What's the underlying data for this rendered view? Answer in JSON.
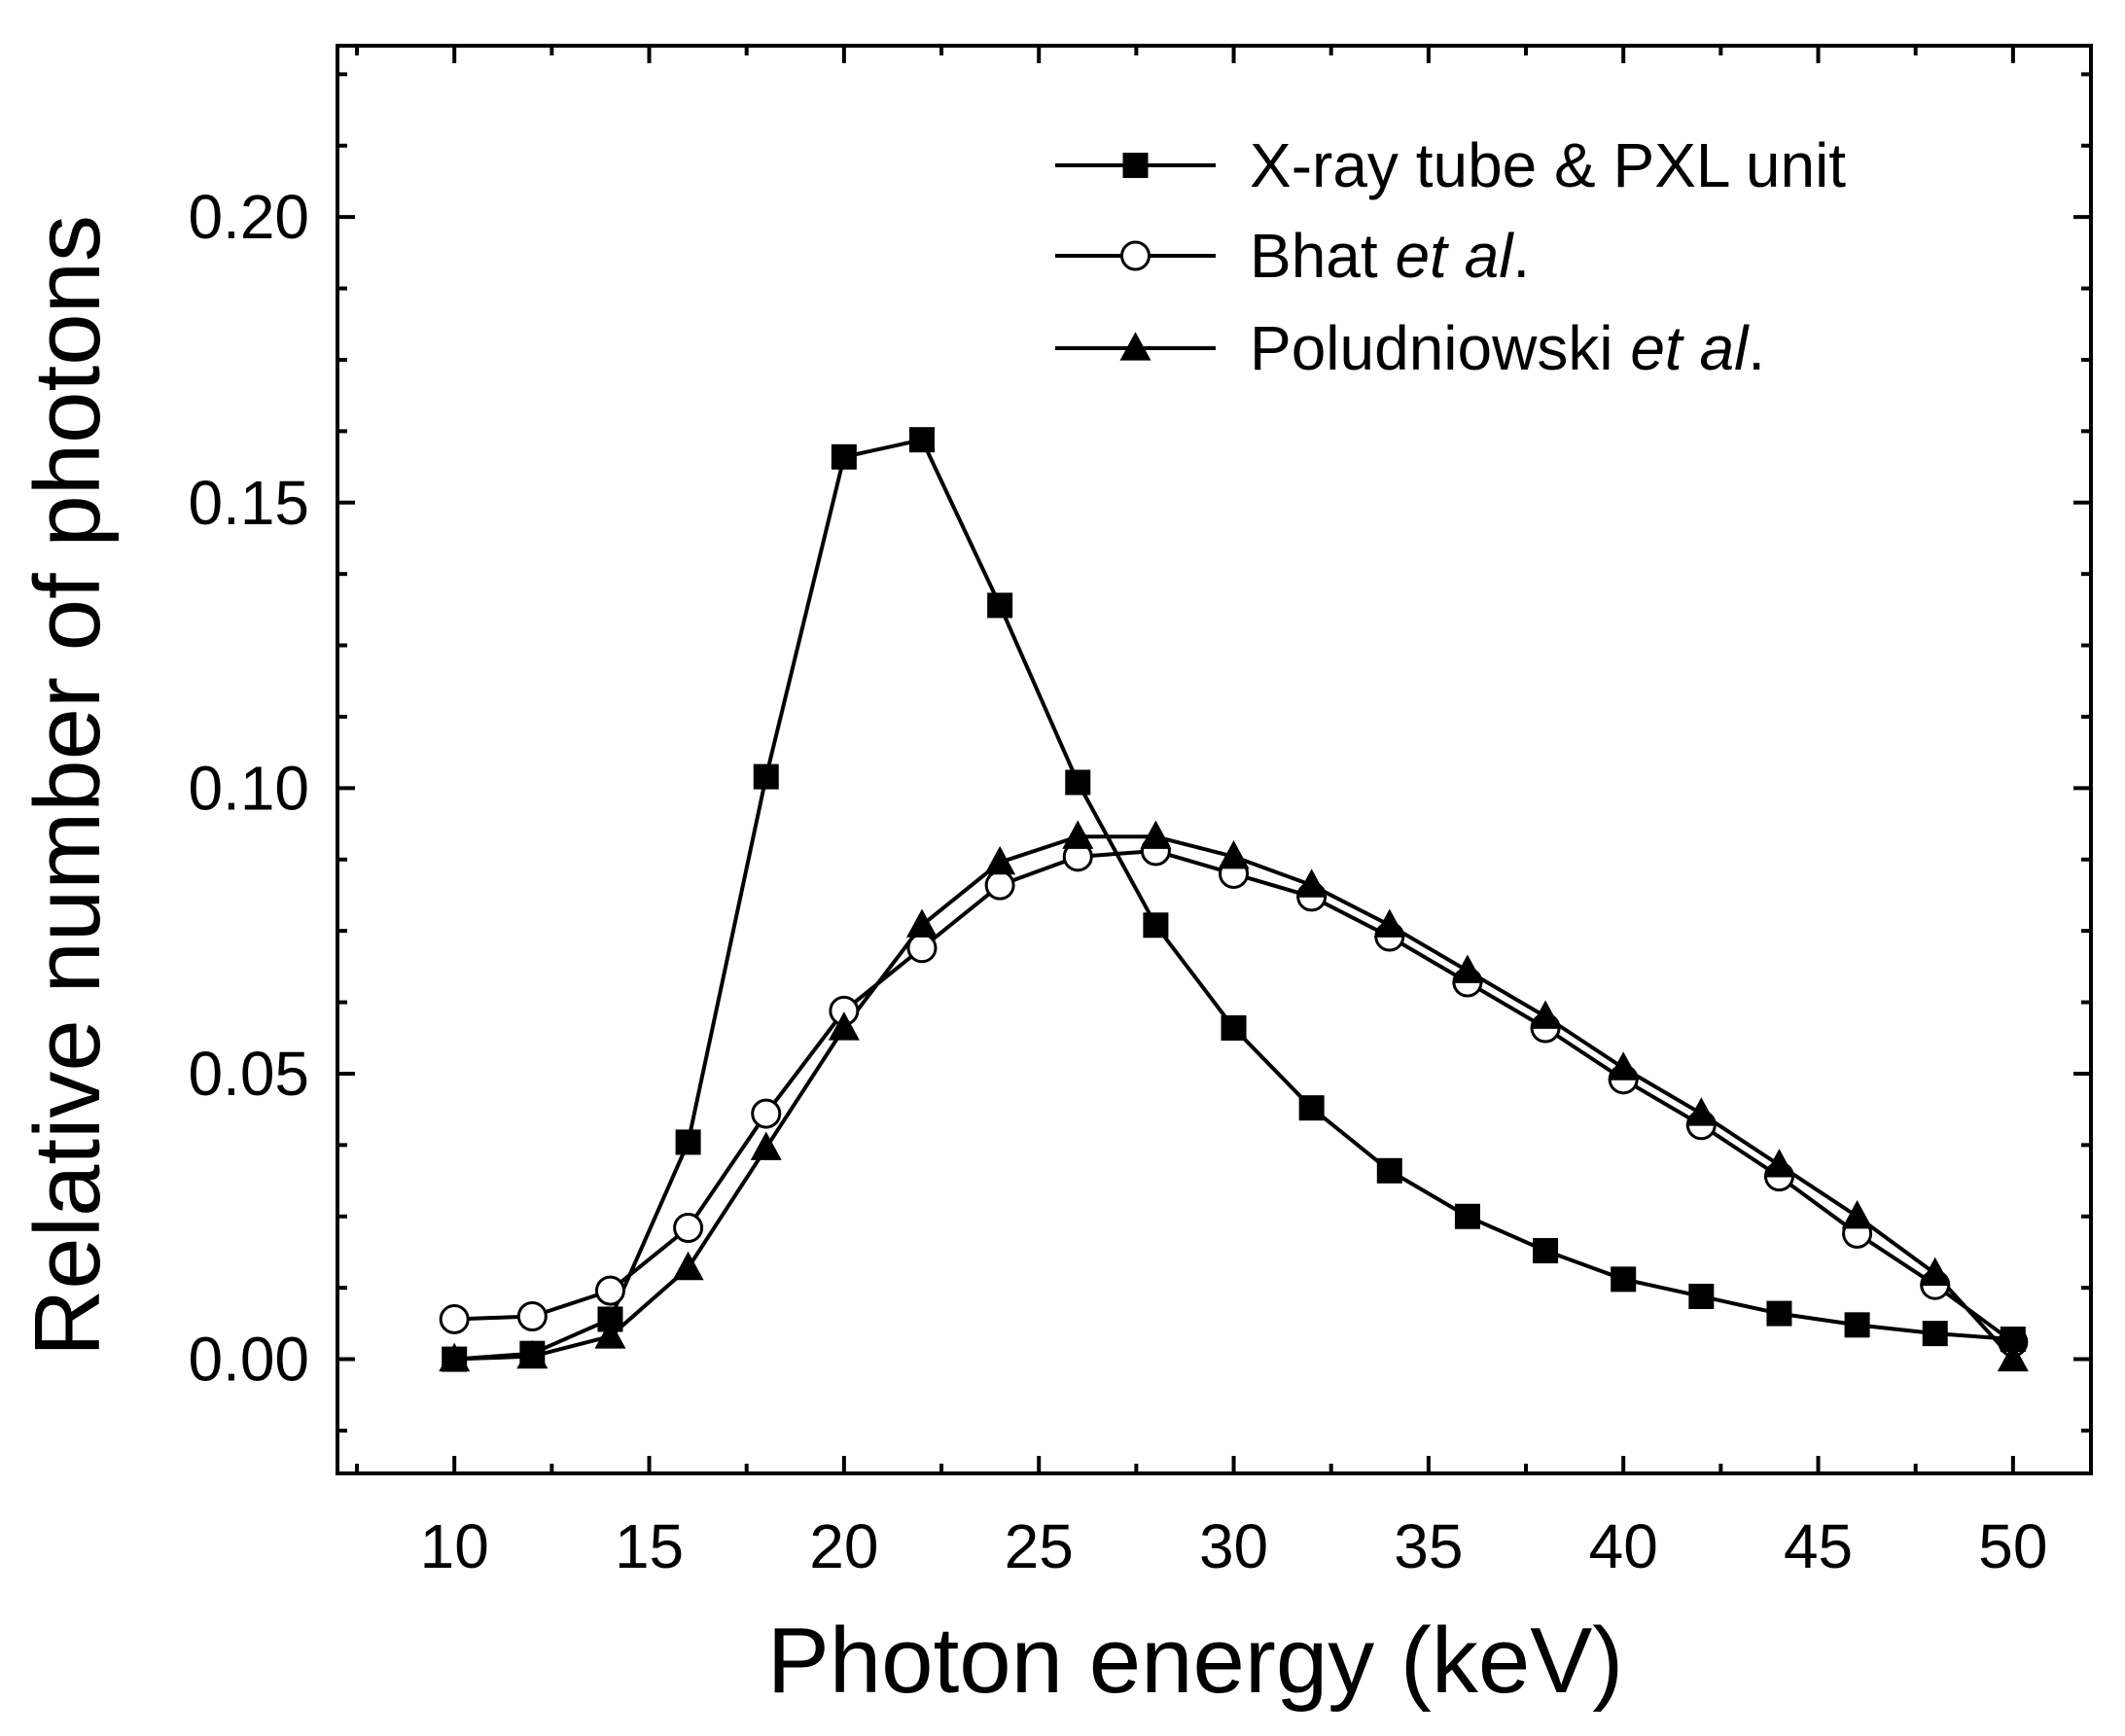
{
  "chart_data": {
    "type": "line",
    "xlabel": "Photon energy (keV)",
    "ylabel": "Relative number of photons",
    "xlim": [
      7,
      52
    ],
    "ylim": [
      -0.02,
      0.23
    ],
    "x_ticks": [
      10,
      15,
      20,
      25,
      30,
      35,
      40,
      45,
      50
    ],
    "x_tick_labels": [
      "10",
      "15",
      "20",
      "25",
      "30",
      "35",
      "40",
      "45",
      "50"
    ],
    "y_ticks": [
      0.0,
      0.05,
      0.1,
      0.15,
      0.2
    ],
    "y_tick_labels": [
      "0.00",
      "0.05",
      "0.10",
      "0.15",
      "0.20"
    ],
    "grid": false,
    "legend_position": "top-right",
    "x": [
      10,
      12,
      14,
      16,
      18,
      20,
      22,
      24,
      26,
      28,
      30,
      32,
      34,
      36,
      38,
      40,
      42,
      44,
      46,
      48,
      50
    ],
    "series": [
      {
        "name": "X-ray tube & PXL unit",
        "legend_parts": [
          {
            "text": "X-ray tube & PXL unit",
            "italic": false
          }
        ],
        "marker": "filled-square",
        "values": [
          0.0,
          0.001,
          0.007,
          0.038,
          0.102,
          0.158,
          0.161,
          0.132,
          0.101,
          0.076,
          0.058,
          0.044,
          0.033,
          0.025,
          0.019,
          0.014,
          0.011,
          0.008,
          0.006,
          0.0045,
          0.0035
        ]
      },
      {
        "name": "Bhat et al.",
        "legend_parts": [
          {
            "text": "Bhat ",
            "italic": false
          },
          {
            "text": "et al",
            "italic": true
          },
          {
            "text": ".",
            "italic": false
          }
        ],
        "marker": "open-circle",
        "values": [
          0.007,
          0.0075,
          0.012,
          0.023,
          0.043,
          0.061,
          0.072,
          0.083,
          0.088,
          0.089,
          0.085,
          0.081,
          0.074,
          0.066,
          0.058,
          0.049,
          0.041,
          0.032,
          0.022,
          0.013,
          0.003
        ]
      },
      {
        "name": "Poludniowski et al.",
        "legend_parts": [
          {
            "text": "Poludniowski ",
            "italic": false
          },
          {
            "text": "et al",
            "italic": true
          },
          {
            "text": ".",
            "italic": false
          }
        ],
        "marker": "filled-triangle",
        "values": [
          0.0,
          0.0005,
          0.004,
          0.016,
          0.037,
          0.058,
          0.076,
          0.087,
          0.0915,
          0.0915,
          0.088,
          0.083,
          0.076,
          0.068,
          0.06,
          0.051,
          0.043,
          0.034,
          0.025,
          0.015,
          0.0
        ]
      }
    ]
  }
}
